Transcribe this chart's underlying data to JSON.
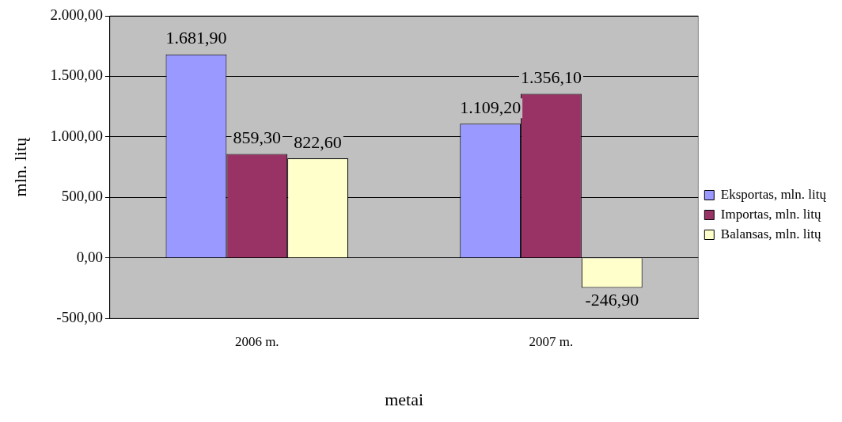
{
  "chart_data": {
    "type": "bar",
    "xlabel": "metai",
    "ylabel": "mln. litų",
    "categories": [
      "2006 m.",
      "2007 m."
    ],
    "series": [
      {
        "name": "Eksportas, mln. litų",
        "color": "#9999ff",
        "values": [
          1681.9,
          1109.2
        ],
        "value_labels": [
          "1.681,90",
          "1.109,20"
        ]
      },
      {
        "name": "Importas, mln. litų",
        "color": "#993366",
        "values": [
          859.3,
          1356.1
        ],
        "value_labels": [
          "859,30",
          "1.356,10"
        ]
      },
      {
        "name": "Balansas, mln. litų",
        "color": "#ffffcc",
        "values": [
          822.6,
          -246.9
        ],
        "value_labels": [
          "822,60",
          "-246,90"
        ]
      }
    ],
    "ylim": [
      -500,
      2000
    ],
    "yticks": [
      {
        "value": -500,
        "label": "-500,00"
      },
      {
        "value": 0,
        "label": "0,00"
      },
      {
        "value": 500,
        "label": "500,00"
      },
      {
        "value": 1000,
        "label": "1.000,00"
      },
      {
        "value": 1500,
        "label": "1.500,00"
      },
      {
        "value": 2000,
        "label": "2.000,00"
      }
    ],
    "grid": "y",
    "legend": "right"
  }
}
